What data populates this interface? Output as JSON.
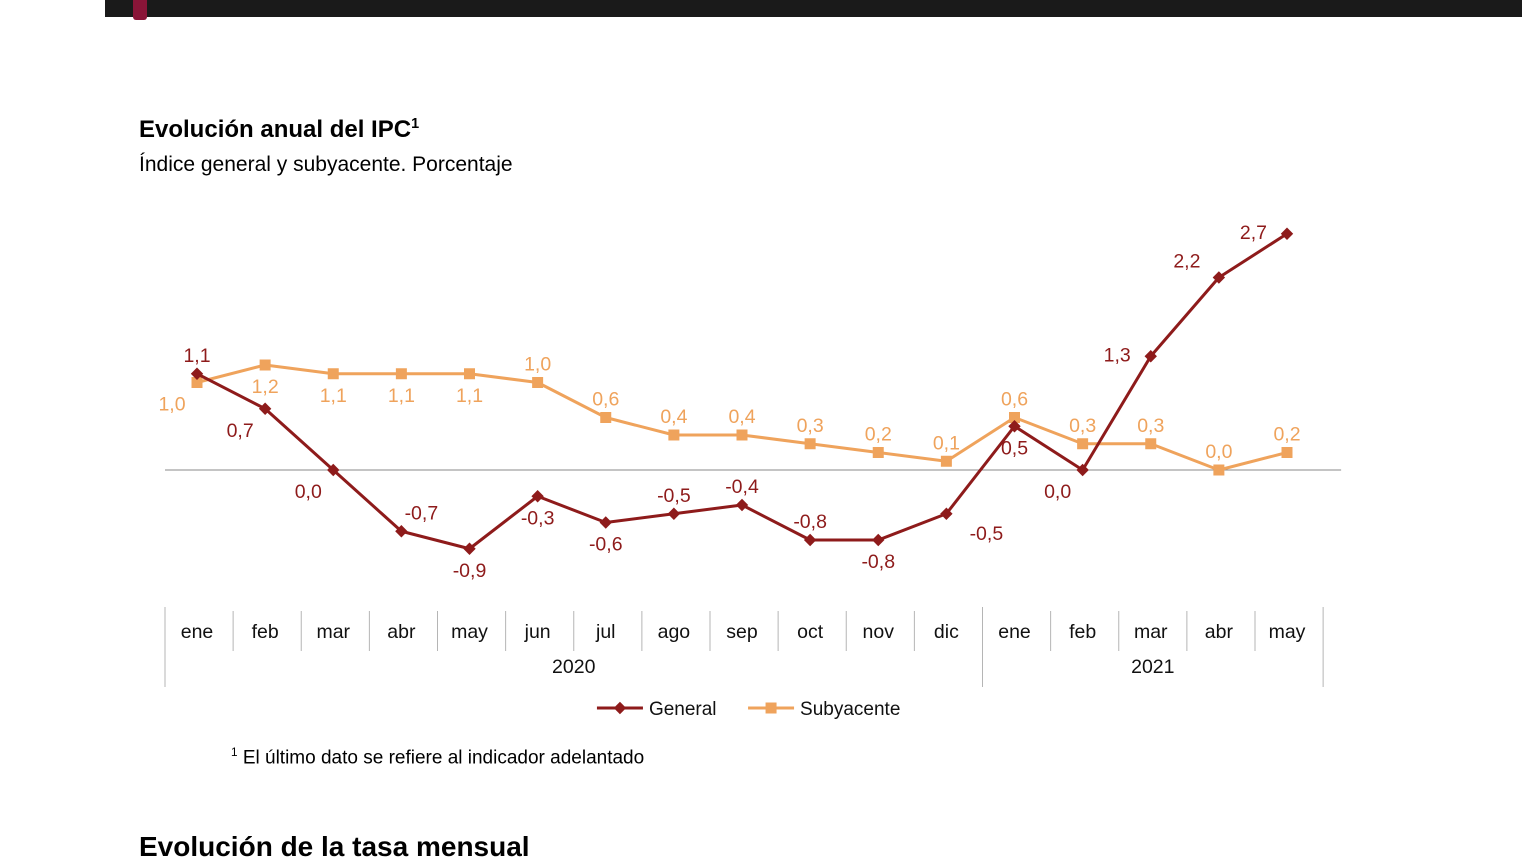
{
  "page": {
    "title": "Evolución anual del IPC",
    "title_sup": "1",
    "subtitle": "Índice general y subyacente. Porcentaje",
    "footnote_sup": "1",
    "footnote": "El último dato se refiere al indicador adelantado",
    "next_section_title": "Evolución de la tasa mensual"
  },
  "chart_data": {
    "type": "line",
    "title": "Evolución anual del IPC",
    "subtitle": "Índice general y subyacente. Porcentaje",
    "x_categories": [
      "ene",
      "feb",
      "mar",
      "abr",
      "may",
      "jun",
      "jul",
      "ago",
      "sep",
      "oct",
      "nov",
      "dic",
      "ene",
      "feb",
      "mar",
      "abr",
      "may"
    ],
    "year_groups": [
      {
        "label": "2020",
        "from": 0,
        "to": 11
      },
      {
        "label": "2021",
        "from": 12,
        "to": 16
      }
    ],
    "ylim": [
      -1.2,
      3.0
    ],
    "grid": false,
    "legend_position": "bottom",
    "colors": {
      "general": "#8e1b1b",
      "subyacente": "#efa35c",
      "axis": "#8a8a8a",
      "tick": "#b5b5b5"
    },
    "series": [
      {
        "name": "General",
        "color": "#8e1b1b",
        "marker": "diamond",
        "values": [
          1.1,
          0.7,
          0.0,
          -0.7,
          -0.9,
          -0.3,
          -0.6,
          -0.5,
          -0.4,
          -0.8,
          -0.8,
          -0.5,
          0.5,
          0.0,
          1.3,
          2.2,
          2.7
        ],
        "labels": [
          "1,1",
          "0,7",
          "0,0",
          "-0,7",
          "-0,9",
          "-0,3",
          "-0,6",
          "-0,5",
          "-0,4",
          "-0,8",
          "-0,8",
          "-0,5",
          "0,5",
          "0,0",
          "1,3",
          "2,2",
          "2,7"
        ],
        "label_pos": [
          "above",
          "below-left",
          "below-left",
          "above-right",
          "below",
          "below",
          "below",
          "above",
          "above",
          "above",
          "below",
          "below-right",
          "below",
          "below-left",
          "left",
          "above-left",
          "left"
        ]
      },
      {
        "name": "Subyacente",
        "color": "#efa35c",
        "marker": "square",
        "values": [
          1.0,
          1.2,
          1.1,
          1.1,
          1.1,
          1.0,
          0.6,
          0.4,
          0.4,
          0.3,
          0.2,
          0.1,
          0.6,
          0.3,
          0.3,
          0.0,
          0.2
        ],
        "labels": [
          "1,0",
          "1,2",
          "1,1",
          "1,1",
          "1,1",
          "1,0",
          "0,6",
          "0,4",
          "0,4",
          "0,3",
          "0,2",
          "0,1",
          "0,6",
          "0,3",
          "0,3",
          "0,0",
          "0,2"
        ],
        "label_pos": [
          "below-left",
          "below",
          "below",
          "below",
          "below",
          "above",
          "above",
          "above",
          "above",
          "above",
          "above",
          "above",
          "above",
          "above",
          "above",
          "above",
          "above"
        ]
      }
    ]
  }
}
